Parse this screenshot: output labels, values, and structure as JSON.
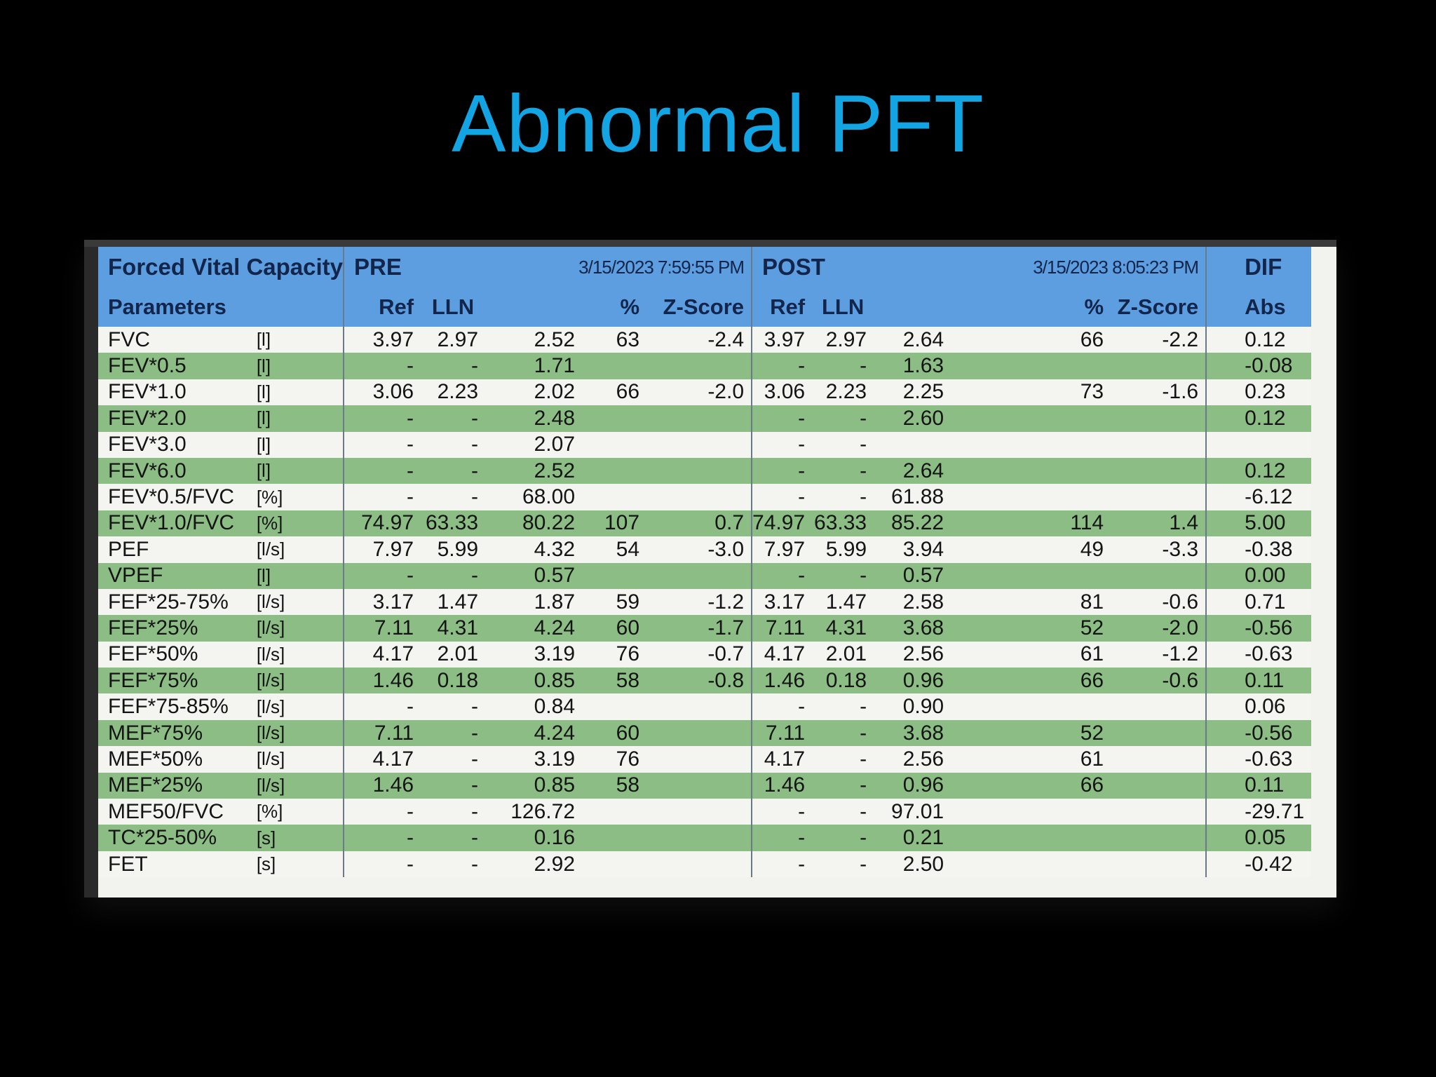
{
  "slide": {
    "title": "Abnormal PFT"
  },
  "report": {
    "header": {
      "section_title": "Forced Vital Capacity",
      "parameters_label": "Parameters",
      "pre_label": "PRE",
      "pre_datetime": "3/15/2023 7:59:55 PM",
      "post_label": "POST",
      "post_datetime": "3/15/2023 8:05:23 PM",
      "diff_label": "DIF",
      "pre_ref": "Ref",
      "pre_lln": "LLN",
      "pre_pct": "%",
      "pre_z": "Z-Score",
      "post_ref": "Ref",
      "post_lln": "LLN",
      "post_pct": "%",
      "post_z": "Z-Score",
      "diff_abs": "Abs"
    },
    "rows": [
      {
        "name": "FVC",
        "unit": "[l]",
        "pre_ref": "3.97",
        "pre_lln": "2.97",
        "pre_val": "2.52",
        "pre_pct": "63",
        "pre_z": "-2.4",
        "post_ref": "3.97",
        "post_lln": "2.97",
        "post_val": "2.64",
        "post_pct": "66",
        "post_z": "-2.2",
        "diff_abs": "0.12"
      },
      {
        "name": "FEV*0.5",
        "unit": "[l]",
        "pre_ref": "-",
        "pre_lln": "-",
        "pre_val": "1.71",
        "pre_pct": "",
        "pre_z": "",
        "post_ref": "-",
        "post_lln": "-",
        "post_val": "1.63",
        "post_pct": "",
        "post_z": "",
        "diff_abs": "-0.08"
      },
      {
        "name": "FEV*1.0",
        "unit": "[l]",
        "pre_ref": "3.06",
        "pre_lln": "2.23",
        "pre_val": "2.02",
        "pre_pct": "66",
        "pre_z": "-2.0",
        "post_ref": "3.06",
        "post_lln": "2.23",
        "post_val": "2.25",
        "post_pct": "73",
        "post_z": "-1.6",
        "diff_abs": "0.23"
      },
      {
        "name": "FEV*2.0",
        "unit": "[l]",
        "pre_ref": "-",
        "pre_lln": "-",
        "pre_val": "2.48",
        "pre_pct": "",
        "pre_z": "",
        "post_ref": "-",
        "post_lln": "-",
        "post_val": "2.60",
        "post_pct": "",
        "post_z": "",
        "diff_abs": "0.12"
      },
      {
        "name": "FEV*3.0",
        "unit": "[l]",
        "pre_ref": "-",
        "pre_lln": "-",
        "pre_val": "2.07",
        "pre_pct": "",
        "pre_z": "",
        "post_ref": "-",
        "post_lln": "-",
        "post_val": "",
        "post_pct": "",
        "post_z": "",
        "diff_abs": ""
      },
      {
        "name": "FEV*6.0",
        "unit": "[l]",
        "pre_ref": "-",
        "pre_lln": "-",
        "pre_val": "2.52",
        "pre_pct": "",
        "pre_z": "",
        "post_ref": "-",
        "post_lln": "-",
        "post_val": "2.64",
        "post_pct": "",
        "post_z": "",
        "diff_abs": "0.12"
      },
      {
        "name": "FEV*0.5/FVC",
        "unit": "[%]",
        "pre_ref": "-",
        "pre_lln": "-",
        "pre_val": "68.00",
        "pre_pct": "",
        "pre_z": "",
        "post_ref": "-",
        "post_lln": "-",
        "post_val": "61.88",
        "post_pct": "",
        "post_z": "",
        "diff_abs": "-6.12"
      },
      {
        "name": "FEV*1.0/FVC",
        "unit": "[%]",
        "pre_ref": "74.97",
        "pre_lln": "63.33",
        "pre_val": "80.22",
        "pre_pct": "107",
        "pre_z": "0.7",
        "post_ref": "74.97",
        "post_lln": "63.33",
        "post_val": "85.22",
        "post_pct": "114",
        "post_z": "1.4",
        "diff_abs": "5.00"
      },
      {
        "name": "PEF",
        "unit": "[l/s]",
        "pre_ref": "7.97",
        "pre_lln": "5.99",
        "pre_val": "4.32",
        "pre_pct": "54",
        "pre_z": "-3.0",
        "post_ref": "7.97",
        "post_lln": "5.99",
        "post_val": "3.94",
        "post_pct": "49",
        "post_z": "-3.3",
        "diff_abs": "-0.38"
      },
      {
        "name": "VPEF",
        "unit": "[l]",
        "pre_ref": "-",
        "pre_lln": "-",
        "pre_val": "0.57",
        "pre_pct": "",
        "pre_z": "",
        "post_ref": "-",
        "post_lln": "-",
        "post_val": "0.57",
        "post_pct": "",
        "post_z": "",
        "diff_abs": "0.00"
      },
      {
        "name": "FEF*25-75%",
        "unit": "[l/s]",
        "pre_ref": "3.17",
        "pre_lln": "1.47",
        "pre_val": "1.87",
        "pre_pct": "59",
        "pre_z": "-1.2",
        "post_ref": "3.17",
        "post_lln": "1.47",
        "post_val": "2.58",
        "post_pct": "81",
        "post_z": "-0.6",
        "diff_abs": "0.71"
      },
      {
        "name": "FEF*25%",
        "unit": "[l/s]",
        "pre_ref": "7.11",
        "pre_lln": "4.31",
        "pre_val": "4.24",
        "pre_pct": "60",
        "pre_z": "-1.7",
        "post_ref": "7.11",
        "post_lln": "4.31",
        "post_val": "3.68",
        "post_pct": "52",
        "post_z": "-2.0",
        "diff_abs": "-0.56"
      },
      {
        "name": "FEF*50%",
        "unit": "[l/s]",
        "pre_ref": "4.17",
        "pre_lln": "2.01",
        "pre_val": "3.19",
        "pre_pct": "76",
        "pre_z": "-0.7",
        "post_ref": "4.17",
        "post_lln": "2.01",
        "post_val": "2.56",
        "post_pct": "61",
        "post_z": "-1.2",
        "diff_abs": "-0.63"
      },
      {
        "name": "FEF*75%",
        "unit": "[l/s]",
        "pre_ref": "1.46",
        "pre_lln": "0.18",
        "pre_val": "0.85",
        "pre_pct": "58",
        "pre_z": "-0.8",
        "post_ref": "1.46",
        "post_lln": "0.18",
        "post_val": "0.96",
        "post_pct": "66",
        "post_z": "-0.6",
        "diff_abs": "0.11"
      },
      {
        "name": "FEF*75-85%",
        "unit": "[l/s]",
        "pre_ref": "-",
        "pre_lln": "-",
        "pre_val": "0.84",
        "pre_pct": "",
        "pre_z": "",
        "post_ref": "-",
        "post_lln": "-",
        "post_val": "0.90",
        "post_pct": "",
        "post_z": "",
        "diff_abs": "0.06"
      },
      {
        "name": "MEF*75%",
        "unit": "[l/s]",
        "pre_ref": "7.11",
        "pre_lln": "-",
        "pre_val": "4.24",
        "pre_pct": "60",
        "pre_z": "",
        "post_ref": "7.11",
        "post_lln": "-",
        "post_val": "3.68",
        "post_pct": "52",
        "post_z": "",
        "diff_abs": "-0.56"
      },
      {
        "name": "MEF*50%",
        "unit": "[l/s]",
        "pre_ref": "4.17",
        "pre_lln": "-",
        "pre_val": "3.19",
        "pre_pct": "76",
        "pre_z": "",
        "post_ref": "4.17",
        "post_lln": "-",
        "post_val": "2.56",
        "post_pct": "61",
        "post_z": "",
        "diff_abs": "-0.63"
      },
      {
        "name": "MEF*25%",
        "unit": "[l/s]",
        "pre_ref": "1.46",
        "pre_lln": "-",
        "pre_val": "0.85",
        "pre_pct": "58",
        "pre_z": "",
        "post_ref": "1.46",
        "post_lln": "-",
        "post_val": "0.96",
        "post_pct": "66",
        "post_z": "",
        "diff_abs": "0.11"
      },
      {
        "name": "MEF50/FVC",
        "unit": "[%]",
        "pre_ref": "-",
        "pre_lln": "-",
        "pre_val": "126.72",
        "pre_pct": "",
        "pre_z": "",
        "post_ref": "-",
        "post_lln": "-",
        "post_val": "97.01",
        "post_pct": "",
        "post_z": "",
        "diff_abs": "-29.71"
      },
      {
        "name": "TC*25-50%",
        "unit": "[s]",
        "pre_ref": "-",
        "pre_lln": "-",
        "pre_val": "0.16",
        "pre_pct": "",
        "pre_z": "",
        "post_ref": "-",
        "post_lln": "-",
        "post_val": "0.21",
        "post_pct": "",
        "post_z": "",
        "diff_abs": "0.05"
      },
      {
        "name": "FET",
        "unit": "[s]",
        "pre_ref": "-",
        "pre_lln": "-",
        "pre_val": "2.92",
        "pre_pct": "",
        "pre_z": "",
        "post_ref": "-",
        "post_lln": "-",
        "post_val": "2.50",
        "post_pct": "",
        "post_z": "",
        "diff_abs": "-0.42"
      }
    ]
  }
}
